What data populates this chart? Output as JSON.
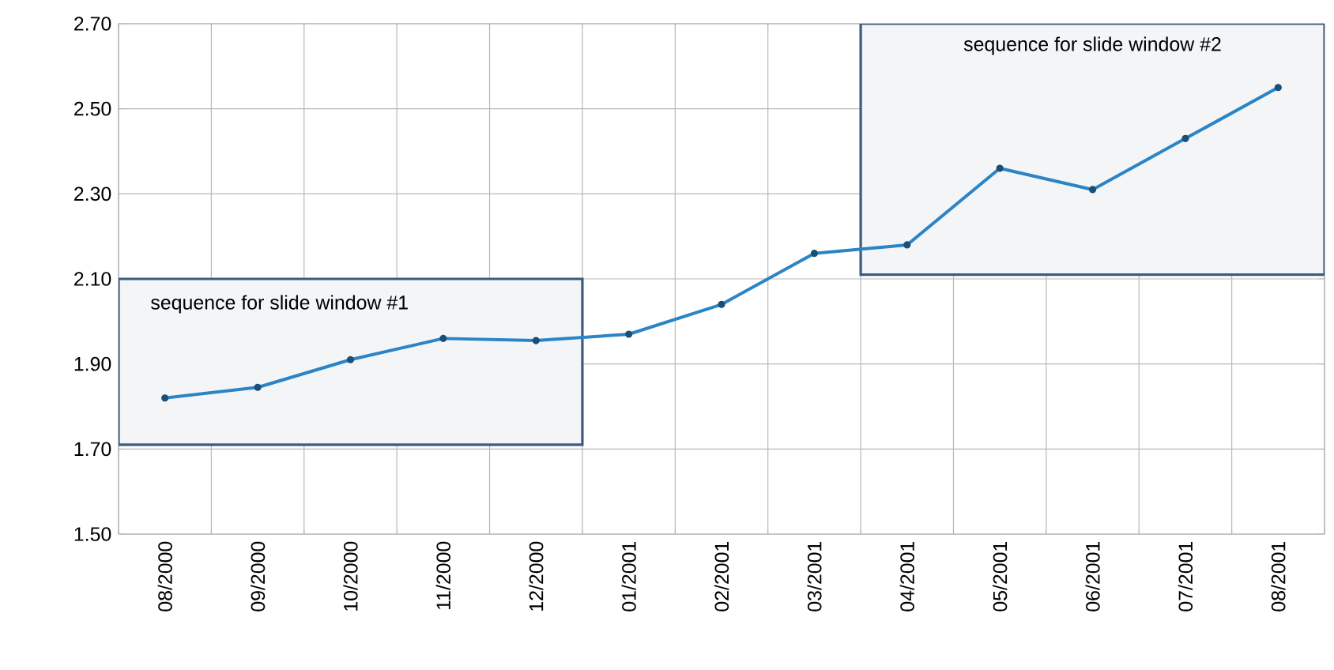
{
  "chart_data": {
    "type": "line",
    "categories": [
      "08/2000",
      "09/2000",
      "10/2000",
      "11/2000",
      "12/2000",
      "01/2001",
      "02/2001",
      "03/2001",
      "04/2001",
      "05/2001",
      "06/2001",
      "07/2001",
      "08/2001"
    ],
    "series": [
      {
        "color": "#2b84c6",
        "values": [
          1.82,
          1.845,
          1.91,
          1.96,
          1.955,
          1.97,
          2.04,
          2.16,
          2.18,
          2.36,
          2.31,
          2.43,
          2.55
        ]
      }
    ],
    "ylim": [
      1.5,
      2.7
    ],
    "yticks": [
      {
        "value": 1.5,
        "label": "1.50"
      },
      {
        "value": 1.7,
        "label": "1.70"
      },
      {
        "value": 1.9,
        "label": "1.90"
      },
      {
        "value": 2.1,
        "label": "2.10"
      },
      {
        "value": 2.3,
        "label": "2.30"
      },
      {
        "value": 2.5,
        "label": "2.50"
      },
      {
        "value": 2.7,
        "label": "2.70"
      }
    ],
    "grid": true,
    "marker": "circle",
    "line_style": "solid",
    "bands": [
      {
        "axis": "y",
        "from": 1.71,
        "to": 2.1,
        "label": "sequence for slide window #1"
      },
      {
        "axis": "y",
        "from": 2.11,
        "to": 2.7,
        "label": "sequence for slide window #2"
      }
    ]
  }
}
